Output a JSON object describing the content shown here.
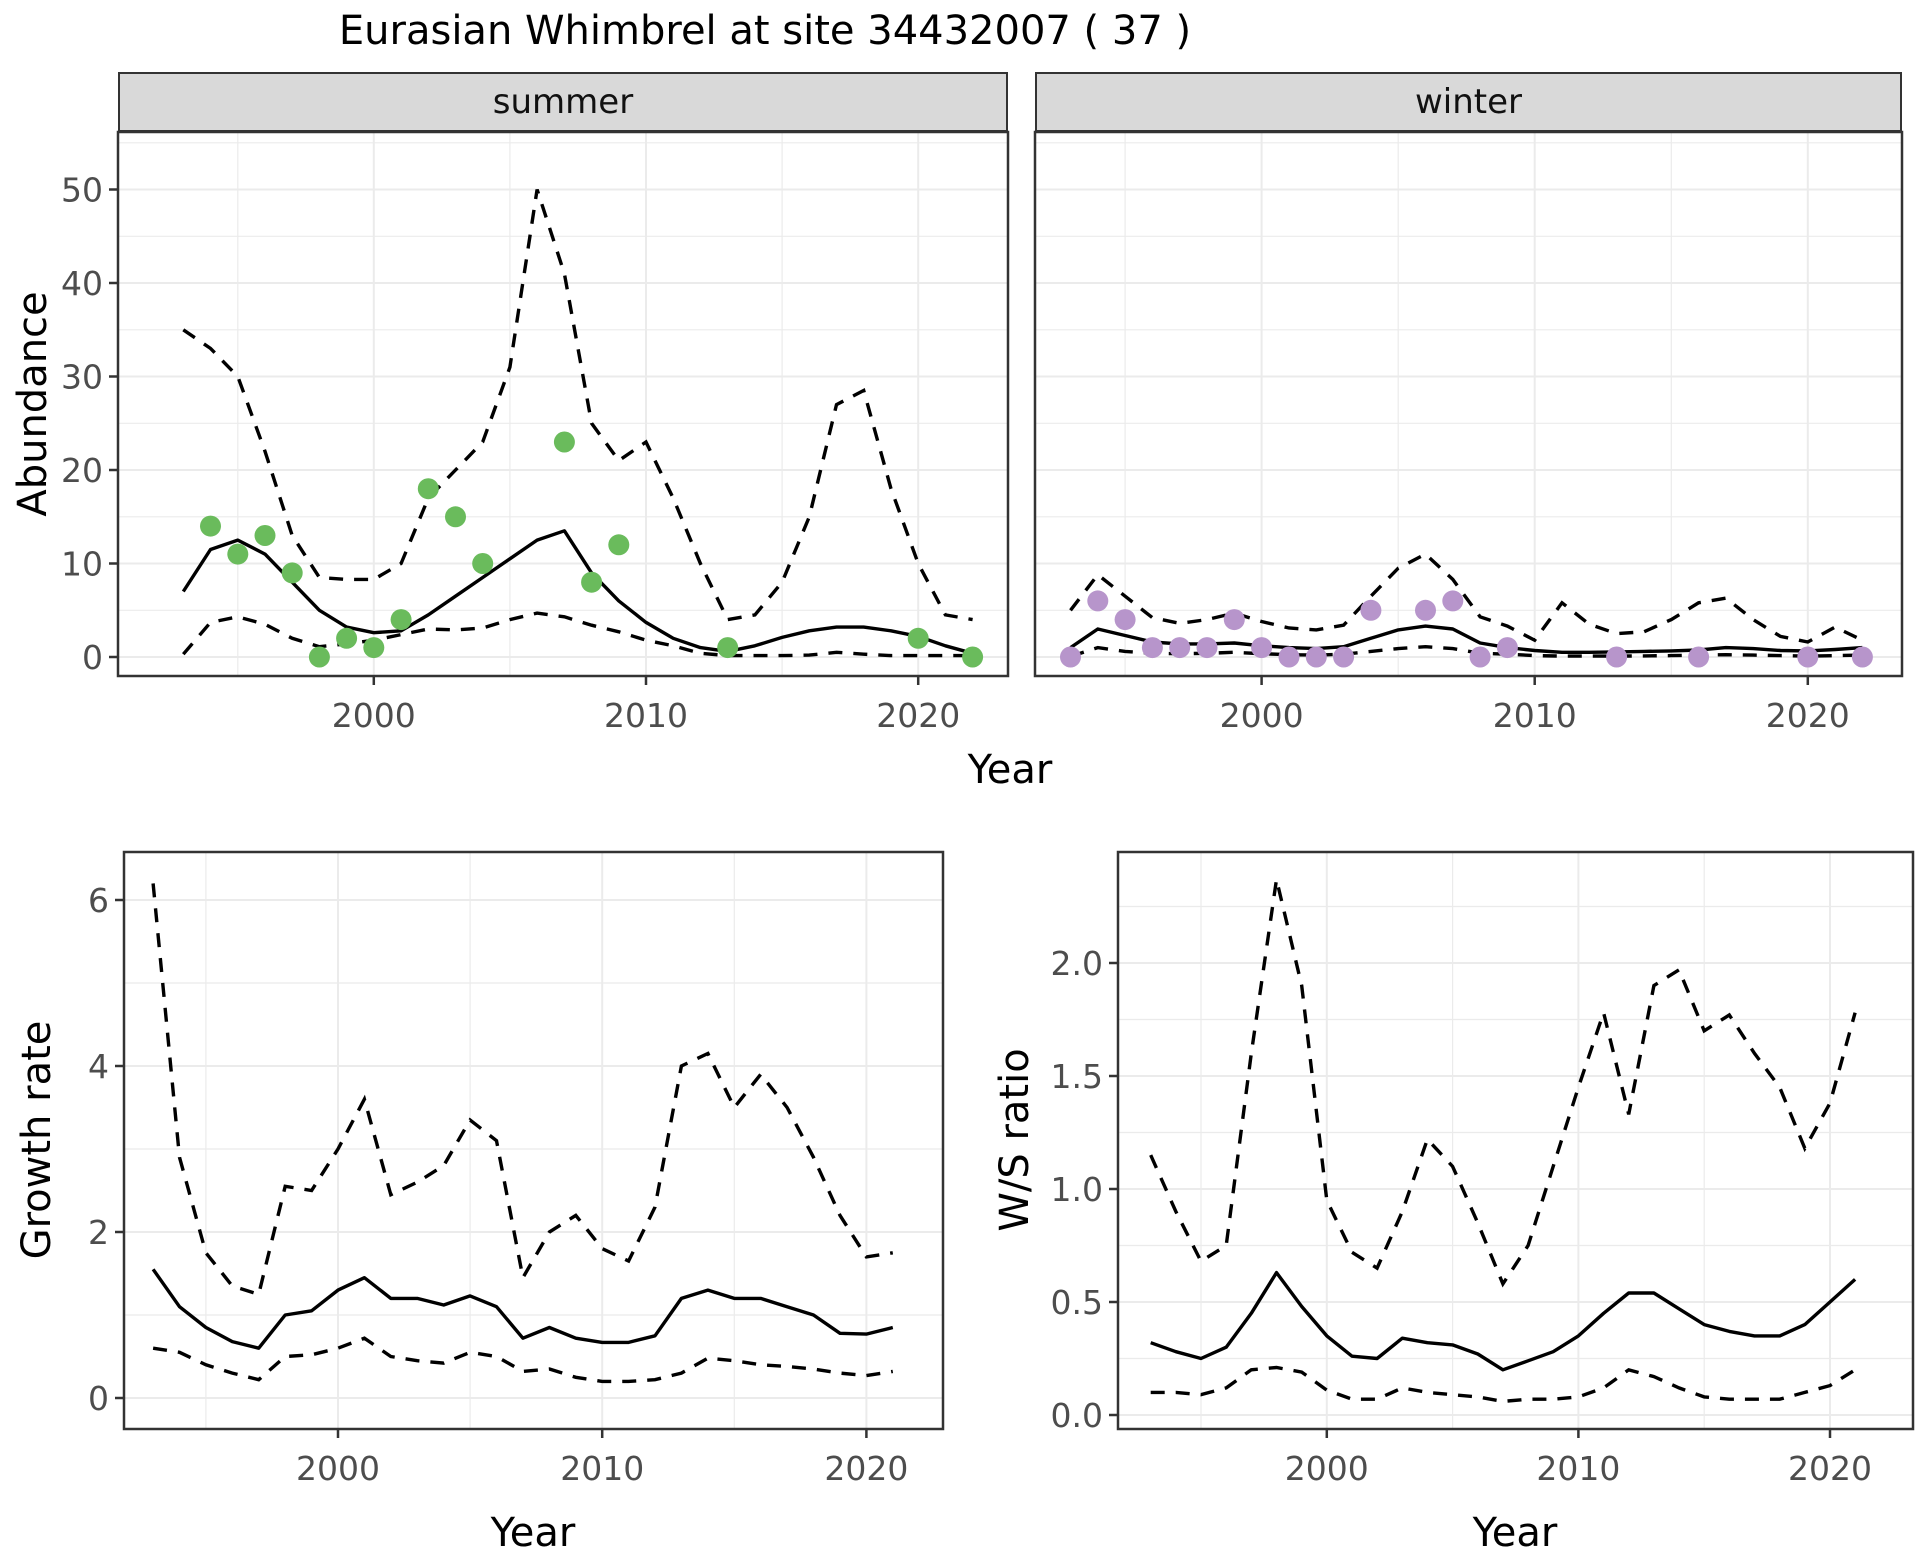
{
  "title": "Eurasian Whimbrel at site 34432007 ( 37 )",
  "colors": {
    "background": "#ffffff",
    "summer_point": "#6abb5c",
    "winter_point": "#b795cb",
    "line": "#000000",
    "grid": "#ebebeb",
    "strip_fill": "#d9d9d9",
    "panel_border": "#333333",
    "tick_text": "#4d4d4d",
    "axis_title_text": "#000000"
  },
  "chart_data": {
    "abundance": {
      "type": "line",
      "title": "Eurasian Whimbrel at site 34432007 ( 37 )",
      "xlabel": "Year",
      "ylabel": "Abundance",
      "ylim": [
        0,
        50
      ],
      "y_ticks": [
        0,
        10,
        20,
        30,
        40,
        50
      ],
      "y_tick_labels": [
        "0",
        "10",
        "20",
        "30",
        "40",
        "50"
      ],
      "x_ticks": [
        2000,
        2010,
        2020
      ],
      "x_tick_labels": [
        "2000",
        "2010",
        "2020"
      ],
      "grid": "on",
      "legend": "none",
      "facets": [
        {
          "label": "summer",
          "point_color": "#6abb5c",
          "years": [
            1993,
            1994,
            1995,
            1996,
            1997,
            1998,
            1999,
            2000,
            2001,
            2002,
            2003,
            2004,
            2005,
            2006,
            2007,
            2008,
            2009,
            2010,
            2011,
            2012,
            2013,
            2014,
            2015,
            2016,
            2017,
            2018,
            2019,
            2020,
            2021,
            2022
          ],
          "mean": [
            7,
            11.5,
            12.5,
            11,
            8,
            5,
            3.2,
            2.6,
            2.8,
            4.5,
            6.5,
            8.5,
            10.5,
            12.5,
            13.5,
            9,
            6,
            3.7,
            2.0,
            1.0,
            0.6,
            1.2,
            2.1,
            2.8,
            3.2,
            3.2,
            2.8,
            2.2,
            1.2,
            0.4
          ],
          "ci_upper": [
            35,
            33,
            30,
            22,
            13,
            8.5,
            8.3,
            8.3,
            10,
            17,
            20,
            23,
            31,
            50,
            41,
            25,
            21,
            23,
            17,
            10,
            4,
            4.5,
            8,
            15,
            27,
            28.5,
            18,
            10,
            4.5,
            4
          ],
          "ci_lower": [
            0.3,
            3.7,
            4.3,
            3.5,
            2.0,
            1.1,
            1.4,
            1.8,
            2.4,
            3.0,
            2.9,
            3.1,
            4.0,
            4.7,
            4.3,
            3.4,
            2.7,
            1.8,
            1.2,
            0.4,
            0.15,
            0.15,
            0.15,
            0.2,
            0.5,
            0.3,
            0.15,
            0.15,
            0.15,
            0.15
          ],
          "obs_years": [
            1994,
            1995,
            1996,
            1997,
            1998,
            1999,
            2000,
            2001,
            2002,
            2003,
            2004,
            2007,
            2008,
            2009,
            2013,
            2020,
            2022
          ],
          "obs_values": [
            14,
            11,
            13,
            9,
            0,
            2,
            1,
            4,
            18,
            15,
            10,
            23,
            8,
            12,
            1,
            2,
            0
          ]
        },
        {
          "label": "winter",
          "point_color": "#b795cb",
          "years": [
            1993,
            1994,
            1995,
            1996,
            1997,
            1998,
            1999,
            2000,
            2001,
            2002,
            2003,
            2004,
            2005,
            2006,
            2007,
            2008,
            2009,
            2010,
            2011,
            2012,
            2013,
            2014,
            2015,
            2016,
            2017,
            2018,
            2019,
            2020,
            2021,
            2022
          ],
          "mean": [
            1.0,
            3.0,
            2.3,
            1.6,
            1.4,
            1.4,
            1.5,
            1.2,
            1.0,
            0.9,
            1.1,
            2.0,
            2.9,
            3.3,
            3.0,
            1.5,
            1.0,
            0.7,
            0.5,
            0.5,
            0.55,
            0.6,
            0.65,
            0.75,
            1.0,
            0.9,
            0.7,
            0.65,
            0.8,
            1.0
          ],
          "ci_upper": [
            5.0,
            8.8,
            6.5,
            4.2,
            3.6,
            4.0,
            4.7,
            3.8,
            3.1,
            2.9,
            3.4,
            6.5,
            9.5,
            11.0,
            8.3,
            4.3,
            3.3,
            1.8,
            5.8,
            3.5,
            2.5,
            2.7,
            4.0,
            5.8,
            6.3,
            4.0,
            2.2,
            1.6,
            3.2,
            1.8
          ],
          "ci_lower": [
            0.05,
            1.0,
            0.6,
            0.4,
            0.35,
            0.4,
            0.5,
            0.35,
            0.25,
            0.2,
            0.3,
            0.6,
            0.9,
            1.1,
            0.9,
            0.4,
            0.3,
            0.15,
            0.1,
            0.1,
            0.1,
            0.12,
            0.15,
            0.2,
            0.25,
            0.2,
            0.15,
            0.1,
            0.15,
            0.2
          ],
          "obs_years": [
            1993,
            1994,
            1995,
            1996,
            1997,
            1998,
            1999,
            2000,
            2001,
            2002,
            2003,
            2004,
            2006,
            2007,
            2008,
            2009,
            2013,
            2016,
            2020,
            2022
          ],
          "obs_values": [
            0,
            6,
            4,
            1,
            1,
            1,
            4,
            1,
            0,
            0,
            0,
            5,
            5,
            6,
            0,
            1,
            0,
            0,
            0,
            0
          ]
        }
      ]
    },
    "growth_rate": {
      "type": "line",
      "xlabel": "Year",
      "ylabel": "Growth rate",
      "ylim": [
        0,
        6
      ],
      "y_ticks": [
        0,
        2,
        4,
        6
      ],
      "y_tick_labels": [
        "0",
        "2",
        "4",
        "6"
      ],
      "x_ticks": [
        2000,
        2010,
        2020
      ],
      "x_tick_labels": [
        "2000",
        "2010",
        "2020"
      ],
      "grid": "on",
      "legend": "none",
      "years": [
        1993,
        1994,
        1995,
        1996,
        1997,
        1998,
        1999,
        2000,
        2001,
        2002,
        2003,
        2004,
        2005,
        2006,
        2007,
        2008,
        2009,
        2010,
        2011,
        2012,
        2013,
        2014,
        2015,
        2016,
        2017,
        2018,
        2019,
        2020,
        2021
      ],
      "mean": [
        1.55,
        1.1,
        0.85,
        0.68,
        0.6,
        1.0,
        1.05,
        1.3,
        1.45,
        1.2,
        1.2,
        1.12,
        1.23,
        1.1,
        0.72,
        0.85,
        0.72,
        0.67,
        0.67,
        0.75,
        1.2,
        1.3,
        1.2,
        1.2,
        1.1,
        1.0,
        0.78,
        0.77,
        0.85
      ],
      "ci_upper": [
        6.2,
        2.9,
        1.75,
        1.35,
        1.25,
        2.55,
        2.5,
        3.0,
        3.6,
        2.45,
        2.6,
        2.8,
        3.35,
        3.1,
        1.45,
        2.0,
        2.2,
        1.8,
        1.65,
        2.3,
        4.0,
        4.15,
        3.5,
        3.9,
        3.5,
        2.9,
        2.2,
        1.7,
        1.75
      ],
      "ci_lower": [
        0.6,
        0.55,
        0.4,
        0.3,
        0.22,
        0.5,
        0.52,
        0.6,
        0.72,
        0.5,
        0.45,
        0.42,
        0.55,
        0.5,
        0.32,
        0.35,
        0.25,
        0.2,
        0.2,
        0.22,
        0.3,
        0.48,
        0.45,
        0.4,
        0.38,
        0.35,
        0.3,
        0.27,
        0.32
      ]
    },
    "ws_ratio": {
      "type": "line",
      "xlabel": "Year",
      "ylabel": "W/S ratio",
      "ylim": [
        0.0,
        2.0
      ],
      "y_ticks": [
        0,
        0.5,
        1,
        1.5,
        2
      ],
      "y_tick_labels": [
        "0.0",
        "0.5",
        "1.0",
        "1.5",
        "2.0"
      ],
      "x_ticks": [
        2000,
        2010,
        2020
      ],
      "x_tick_labels": [
        "2000",
        "2010",
        "2020"
      ],
      "grid": "on",
      "legend": "none",
      "years": [
        1993,
        1994,
        1995,
        1996,
        1997,
        1998,
        1999,
        2000,
        2001,
        2002,
        2003,
        2004,
        2005,
        2006,
        2007,
        2008,
        2009,
        2010,
        2011,
        2012,
        2013,
        2014,
        2015,
        2016,
        2017,
        2018,
        2019,
        2020,
        2021
      ],
      "mean": [
        0.32,
        0.28,
        0.25,
        0.3,
        0.45,
        0.63,
        0.48,
        0.35,
        0.26,
        0.25,
        0.34,
        0.32,
        0.31,
        0.27,
        0.2,
        0.24,
        0.28,
        0.35,
        0.45,
        0.54,
        0.54,
        0.47,
        0.4,
        0.37,
        0.35,
        0.35,
        0.4,
        0.5,
        0.6
      ],
      "ci_upper": [
        1.15,
        0.9,
        0.68,
        0.75,
        1.6,
        2.37,
        1.9,
        0.95,
        0.72,
        0.65,
        0.9,
        1.22,
        1.1,
        0.85,
        0.58,
        0.75,
        1.1,
        1.45,
        1.78,
        1.33,
        1.9,
        1.97,
        1.7,
        1.77,
        1.6,
        1.45,
        1.18,
        1.38,
        1.78
      ],
      "ci_lower": [
        0.1,
        0.1,
        0.09,
        0.12,
        0.2,
        0.21,
        0.19,
        0.11,
        0.07,
        0.07,
        0.12,
        0.1,
        0.09,
        0.08,
        0.06,
        0.07,
        0.07,
        0.08,
        0.12,
        0.2,
        0.17,
        0.12,
        0.08,
        0.07,
        0.07,
        0.07,
        0.1,
        0.13,
        0.2
      ]
    }
  }
}
